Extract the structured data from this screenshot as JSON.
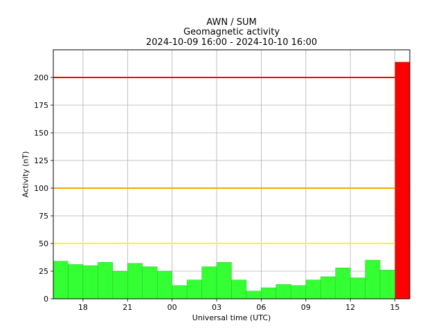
{
  "chart_data": {
    "type": "bar",
    "title_lines": [
      "AWN / SUM",
      "Geomagnetic activity",
      "2024-10-09 16:00 - 2024-10-10 16:00"
    ],
    "xlabel": "Universal time (UTC)",
    "ylabel": "Activity (nT)",
    "xlim": [
      16,
      40
    ],
    "ylim": [
      0,
      225
    ],
    "grid": true,
    "x_ticks": [
      {
        "label": "18",
        "x": 18
      },
      {
        "label": "21",
        "x": 21
      },
      {
        "label": "00",
        "x": 24
      },
      {
        "label": "03",
        "x": 27
      },
      {
        "label": "06",
        "x": 30
      },
      {
        "label": "09",
        "x": 33
      },
      {
        "label": "12",
        "x": 36
      },
      {
        "label": "15",
        "x": 39
      }
    ],
    "y_ticks": [
      0,
      25,
      50,
      75,
      100,
      125,
      150,
      175,
      200
    ],
    "thresholds": [
      {
        "value": 50,
        "color": "#ffff00"
      },
      {
        "value": 100,
        "color": "#ffa500"
      },
      {
        "value": 200,
        "color": "#ff0000"
      }
    ],
    "bar_colors": {
      "normal": "#33ff33",
      "alert": "#ff0000"
    },
    "bars": [
      {
        "start": 16,
        "end": 17,
        "value": 34,
        "color": "#33ff33"
      },
      {
        "start": 17,
        "end": 18,
        "value": 31,
        "color": "#33ff33"
      },
      {
        "start": 18,
        "end": 19,
        "value": 30,
        "color": "#33ff33"
      },
      {
        "start": 19,
        "end": 20,
        "value": 33,
        "color": "#33ff33"
      },
      {
        "start": 20,
        "end": 21,
        "value": 25,
        "color": "#33ff33"
      },
      {
        "start": 21,
        "end": 22,
        "value": 32,
        "color": "#33ff33"
      },
      {
        "start": 22,
        "end": 23,
        "value": 29,
        "color": "#33ff33"
      },
      {
        "start": 23,
        "end": 24,
        "value": 25,
        "color": "#33ff33"
      },
      {
        "start": 24,
        "end": 25,
        "value": 12,
        "color": "#33ff33"
      },
      {
        "start": 25,
        "end": 26,
        "value": 17,
        "color": "#33ff33"
      },
      {
        "start": 26,
        "end": 27,
        "value": 29,
        "color": "#33ff33"
      },
      {
        "start": 27,
        "end": 28,
        "value": 33,
        "color": "#33ff33"
      },
      {
        "start": 28,
        "end": 29,
        "value": 17,
        "color": "#33ff33"
      },
      {
        "start": 29,
        "end": 30,
        "value": 7,
        "color": "#33ff33"
      },
      {
        "start": 30,
        "end": 31,
        "value": 10,
        "color": "#33ff33"
      },
      {
        "start": 31,
        "end": 32,
        "value": 13,
        "color": "#33ff33"
      },
      {
        "start": 32,
        "end": 33,
        "value": 12,
        "color": "#33ff33"
      },
      {
        "start": 33,
        "end": 34,
        "value": 17,
        "color": "#33ff33"
      },
      {
        "start": 34,
        "end": 35,
        "value": 20,
        "color": "#33ff33"
      },
      {
        "start": 35,
        "end": 36,
        "value": 28,
        "color": "#33ff33"
      },
      {
        "start": 36,
        "end": 37,
        "value": 19,
        "color": "#33ff33"
      },
      {
        "start": 37,
        "end": 38,
        "value": 35,
        "color": "#33ff33"
      },
      {
        "start": 38,
        "end": 39,
        "value": 26,
        "color": "#33ff33"
      },
      {
        "start": 39,
        "end": 40,
        "value": 214,
        "color": "#ff0000"
      }
    ]
  }
}
